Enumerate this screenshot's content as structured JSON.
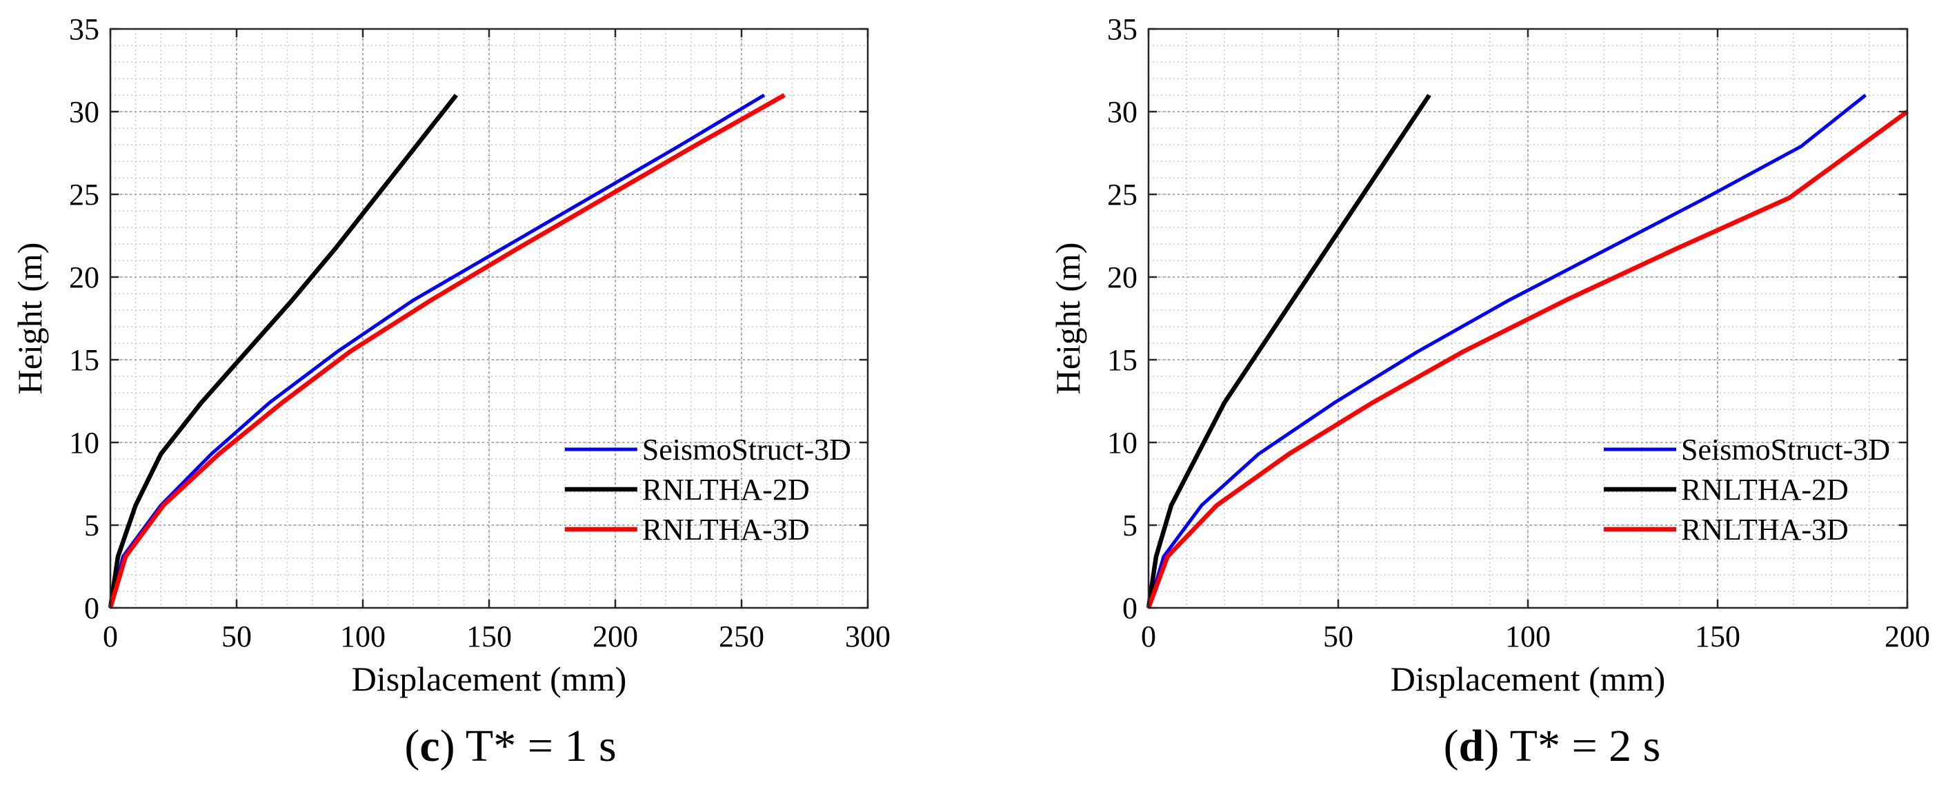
{
  "chart_data": [
    {
      "type": "line",
      "panel": "c",
      "caption": {
        "open": "(",
        "letter": "c",
        "close": ")",
        "text": " T* = 1 s"
      },
      "xlabel": "Displacement (mm)",
      "ylabel": "Height (m)",
      "xlim": [
        0,
        300
      ],
      "ylim": [
        0,
        35
      ],
      "xticks": [
        "0",
        "50",
        "100",
        "150",
        "200",
        "250",
        "300"
      ],
      "yticks": [
        "0",
        "5",
        "10",
        "15",
        "20",
        "25",
        "30",
        "35"
      ],
      "grid": true,
      "legend_position": "bottom-right",
      "series": [
        {
          "name": "SeismoStruct-3D",
          "color": "#0000ff",
          "points": [
            [
              0,
              0
            ],
            [
              5,
              3.1
            ],
            [
              20,
              6.2
            ],
            [
              40,
              9.3
            ],
            [
              63,
              12.4
            ],
            [
              90,
              15.5
            ],
            [
              120,
              18.6
            ],
            [
              155,
              21.7
            ],
            [
              190,
              24.8
            ],
            [
              225,
              27.9
            ],
            [
              259,
              31.0
            ]
          ]
        },
        {
          "name": "RNLTHA-2D",
          "color": "#000000",
          "points": [
            [
              0,
              0
            ],
            [
              3,
              3.1
            ],
            [
              10,
              6.2
            ],
            [
              20,
              9.3
            ],
            [
              36,
              12.4
            ],
            [
              54,
              15.5
            ],
            [
              72,
              18.6
            ],
            [
              89,
              21.7
            ],
            [
              105,
              24.8
            ],
            [
              121,
              27.9
            ],
            [
              137,
              31.0
            ]
          ]
        },
        {
          "name": "RNLTHA-3D",
          "color": "#ff0000",
          "points": [
            [
              0,
              0
            ],
            [
              6,
              3.1
            ],
            [
              21,
              6.2
            ],
            [
              43,
              9.3
            ],
            [
              68,
              12.4
            ],
            [
              95,
              15.5
            ],
            [
              127,
              18.6
            ],
            [
              161,
              21.7
            ],
            [
              196,
              24.8
            ],
            [
              231,
              27.9
            ],
            [
              267,
              31.0
            ]
          ]
        }
      ]
    },
    {
      "type": "line",
      "panel": "d",
      "caption": {
        "open": "(",
        "letter": "d",
        "close": ")",
        "text": " T* = 2 s"
      },
      "xlabel": "Displacement (mm)",
      "ylabel": "Height (m)",
      "xlim": [
        0,
        200
      ],
      "ylim": [
        0,
        35
      ],
      "xticks": [
        "0",
        "50",
        "100",
        "150",
        "200"
      ],
      "yticks": [
        "0",
        "5",
        "10",
        "15",
        "20",
        "25",
        "30",
        "35"
      ],
      "grid": true,
      "legend_position": "bottom-right",
      "series": [
        {
          "name": "SeismoStruct-3D",
          "color": "#0000ff",
          "points": [
            [
              0,
              0
            ],
            [
              4,
              3.1
            ],
            [
              14,
              6.2
            ],
            [
              29,
              9.3
            ],
            [
              49,
              12.4
            ],
            [
              71,
              15.5
            ],
            [
              95,
              18.6
            ],
            [
              121,
              21.7
            ],
            [
              147,
              24.8
            ],
            [
              172,
              27.9
            ],
            [
              189,
              31.0
            ]
          ]
        },
        {
          "name": "RNLTHA-2D",
          "color": "#000000",
          "points": [
            [
              0,
              0
            ],
            [
              2,
              3.1
            ],
            [
              6,
              6.2
            ],
            [
              13,
              9.3
            ],
            [
              20,
              12.4
            ],
            [
              29,
              15.5
            ],
            [
              38,
              18.6
            ],
            [
              47,
              21.7
            ],
            [
              56,
              24.8
            ],
            [
              65,
              27.9
            ],
            [
              74,
              31.0
            ]
          ]
        },
        {
          "name": "RNLTHA-3D",
          "color": "#ff0000",
          "points": [
            [
              0,
              0
            ],
            [
              5,
              3.1
            ],
            [
              18,
              6.2
            ],
            [
              37,
              9.3
            ],
            [
              59,
              12.4
            ],
            [
              83,
              15.5
            ],
            [
              110,
              18.6
            ],
            [
              139,
              21.7
            ],
            [
              169,
              24.8
            ],
            [
              200,
              30.0
            ]
          ]
        }
      ]
    }
  ]
}
